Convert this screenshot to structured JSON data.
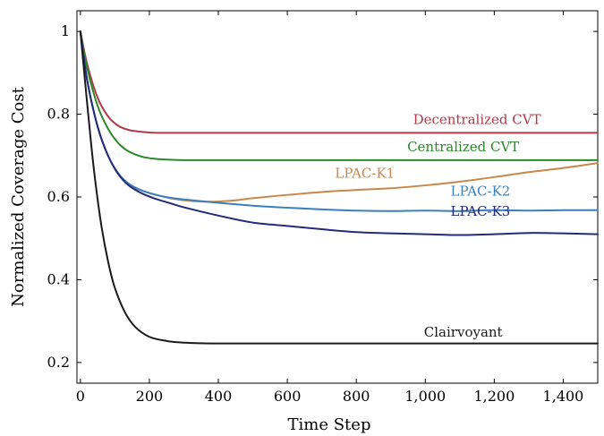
{
  "chart_data": {
    "type": "line",
    "title": "",
    "xlabel": "Time Step",
    "ylabel": "Normalized Coverage Cost",
    "xlim": [
      -10,
      1500
    ],
    "ylim": [
      0.15,
      1.05
    ],
    "xticks": [
      0,
      200,
      400,
      600,
      800,
      1000,
      1200,
      1400
    ],
    "xtick_labels": [
      "0",
      "200",
      "400",
      "600",
      "800",
      "1,000",
      "1,200",
      "1,400"
    ],
    "yticks": [
      0.2,
      0.4,
      0.6,
      0.8,
      1
    ],
    "ytick_labels": [
      "0.2",
      "0.4",
      "0.6",
      "0.8",
      "1"
    ],
    "grid": false,
    "legend": "none",
    "series": [
      {
        "name": "Decentralized CVT",
        "color": "#b03a48",
        "label_at": [
          1150,
          0.776
        ],
        "x": [
          0,
          20,
          50,
          80,
          110,
          140,
          180,
          220,
          300,
          400,
          600,
          800,
          1000,
          1200,
          1500
        ],
        "y": [
          1.0,
          0.92,
          0.84,
          0.795,
          0.772,
          0.762,
          0.757,
          0.755,
          0.755,
          0.755,
          0.755,
          0.755,
          0.755,
          0.755,
          0.755
        ]
      },
      {
        "name": "Centralized CVT",
        "color": "#2a8a2a",
        "label_at": [
          1110,
          0.71
        ],
        "x": [
          0,
          20,
          50,
          80,
          110,
          140,
          180,
          220,
          260,
          300,
          400,
          600,
          800,
          1000,
          1200,
          1500
        ],
        "y": [
          1.0,
          0.91,
          0.82,
          0.765,
          0.73,
          0.71,
          0.697,
          0.692,
          0.69,
          0.689,
          0.689,
          0.689,
          0.689,
          0.689,
          0.689,
          0.689
        ]
      },
      {
        "name": "LPAC-K1",
        "color": "#c8874a",
        "label_at": [
          825,
          0.647
        ],
        "x": [
          0,
          20,
          50,
          80,
          110,
          140,
          180,
          220,
          260,
          300,
          350,
          400,
          450,
          500,
          600,
          700,
          800,
          900,
          1000,
          1100,
          1200,
          1300,
          1400,
          1500
        ],
        "y": [
          1.0,
          0.88,
          0.77,
          0.7,
          0.655,
          0.63,
          0.615,
          0.605,
          0.597,
          0.592,
          0.589,
          0.589,
          0.592,
          0.597,
          0.605,
          0.612,
          0.617,
          0.621,
          0.628,
          0.637,
          0.648,
          0.66,
          0.67,
          0.682
        ]
      },
      {
        "name": "LPAC-K2",
        "color": "#3a7fbf",
        "label_at": [
          1160,
          0.603
        ],
        "x": [
          0,
          20,
          50,
          80,
          110,
          140,
          180,
          220,
          260,
          300,
          400,
          500,
          600,
          700,
          800,
          900,
          1000,
          1100,
          1200,
          1300,
          1400,
          1500
        ],
        "y": [
          1.0,
          0.88,
          0.77,
          0.7,
          0.657,
          0.632,
          0.615,
          0.605,
          0.598,
          0.594,
          0.586,
          0.579,
          0.574,
          0.57,
          0.567,
          0.566,
          0.567,
          0.566,
          0.568,
          0.567,
          0.568,
          0.568
        ]
      },
      {
        "name": "LPAC-K3",
        "color": "#232b7a",
        "label_at": [
          1160,
          0.555
        ],
        "x": [
          0,
          20,
          50,
          80,
          110,
          140,
          180,
          220,
          260,
          300,
          400,
          500,
          600,
          700,
          800,
          900,
          1000,
          1100,
          1200,
          1300,
          1400,
          1500
        ],
        "y": [
          1.0,
          0.88,
          0.77,
          0.7,
          0.655,
          0.628,
          0.608,
          0.595,
          0.585,
          0.575,
          0.555,
          0.538,
          0.53,
          0.522,
          0.515,
          0.512,
          0.51,
          0.508,
          0.51,
          0.513,
          0.512,
          0.51
        ]
      },
      {
        "name": "Clairvoyant",
        "color": "#1a1a1a",
        "label_at": [
          1110,
          0.263
        ],
        "x": [
          0,
          10,
          25,
          40,
          60,
          80,
          100,
          130,
          160,
          200,
          250,
          300,
          400,
          600,
          800,
          1000,
          1200,
          1500
        ],
        "y": [
          1.0,
          0.91,
          0.78,
          0.66,
          0.535,
          0.445,
          0.38,
          0.32,
          0.285,
          0.262,
          0.252,
          0.248,
          0.246,
          0.246,
          0.246,
          0.246,
          0.246,
          0.246
        ]
      }
    ]
  }
}
